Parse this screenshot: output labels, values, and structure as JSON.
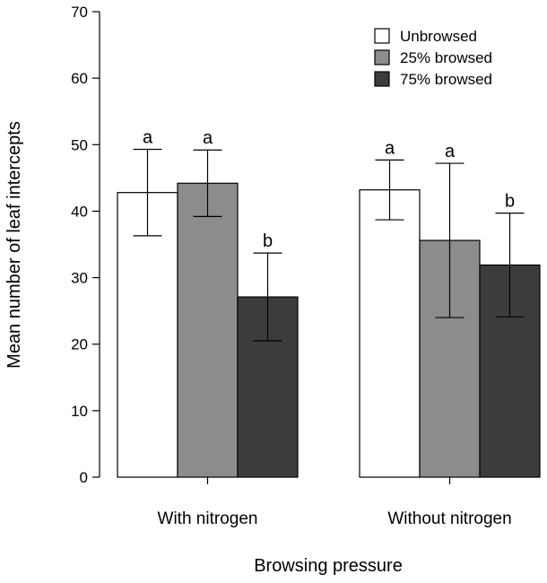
{
  "chart_data": {
    "type": "bar",
    "title": "",
    "xlabel": "Browsing pressure",
    "ylabel": "Mean number of leaf intercepts",
    "ylim": [
      0,
      70
    ],
    "yticks": [
      0,
      10,
      20,
      30,
      40,
      50,
      60,
      70
    ],
    "categories": [
      "With nitrogen",
      "Without nitrogen"
    ],
    "legend_position": "top-right",
    "series": [
      {
        "name": "Unbrowsed",
        "color": "#ffffff",
        "values": [
          42.8,
          43.2
        ],
        "err_low": [
          36.3,
          38.7
        ],
        "err_high": [
          49.3,
          47.7
        ],
        "labels": [
          "a",
          "a"
        ]
      },
      {
        "name": "25% browsed",
        "color": "#8c8c8c",
        "values": [
          44.2,
          35.6
        ],
        "err_low": [
          39.2,
          24.0
        ],
        "err_high": [
          49.2,
          47.2
        ],
        "labels": [
          "a",
          "a"
        ]
      },
      {
        "name": "75% browsed",
        "color": "#3c3c3c",
        "values": [
          27.1,
          31.9
        ],
        "err_low": [
          20.5,
          24.1
        ],
        "err_high": [
          33.7,
          39.7
        ],
        "labels": [
          "b",
          "b"
        ]
      }
    ]
  }
}
